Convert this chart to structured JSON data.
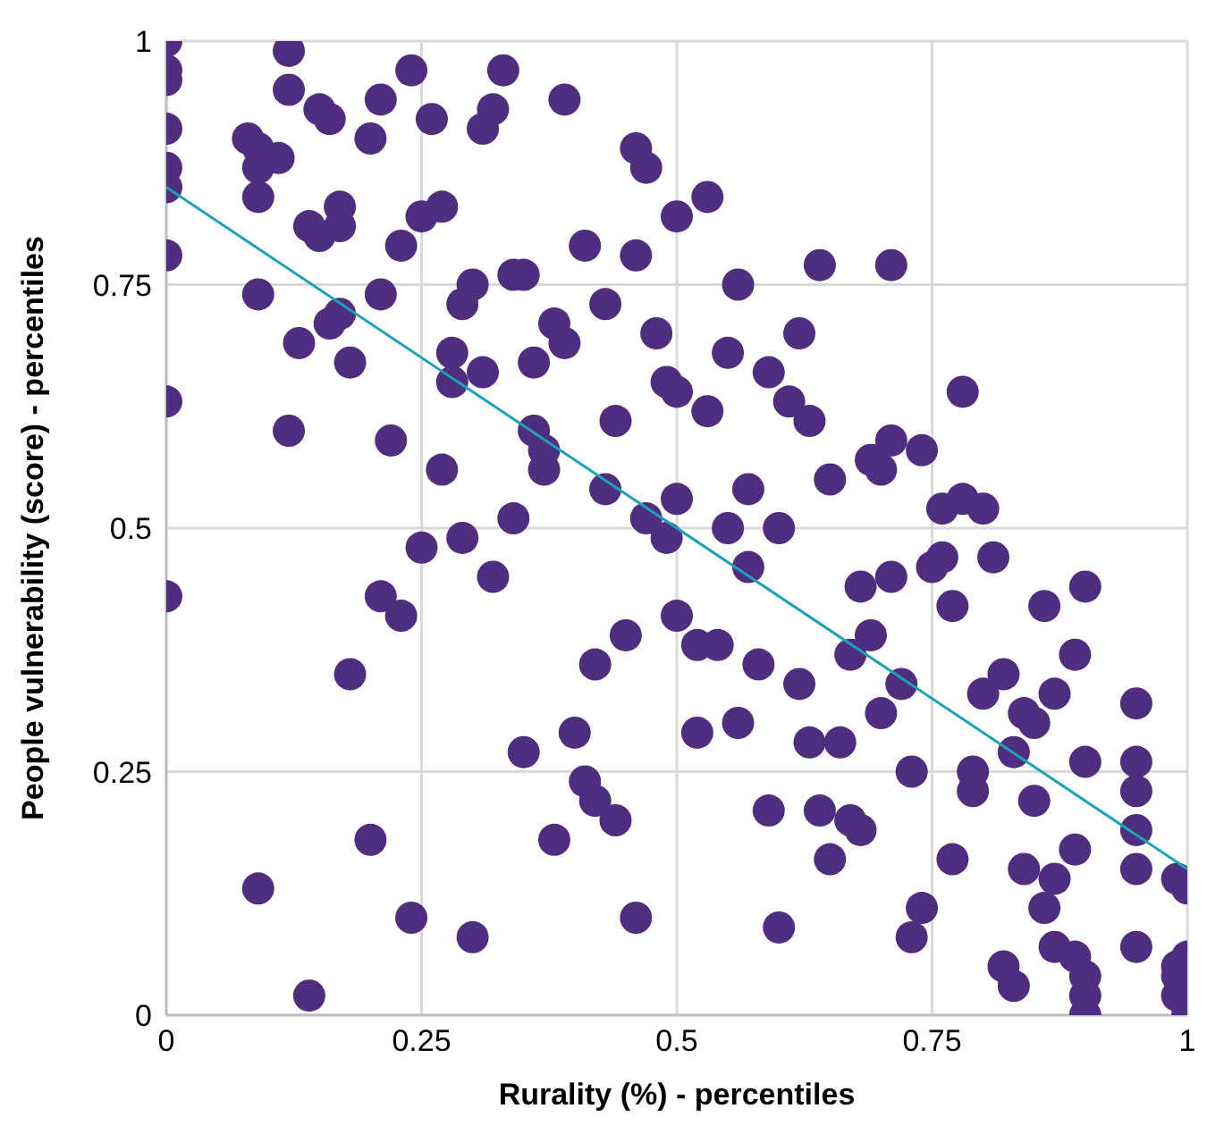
{
  "chart_data": {
    "type": "scatter",
    "xlabel": "Rurality (%) - percentiles",
    "ylabel": "People vulnerability (score) - percentiles",
    "xlim": [
      0,
      1
    ],
    "ylim": [
      0,
      1
    ],
    "xticks": [
      0,
      0.25,
      0.5,
      0.75,
      1
    ],
    "yticks": [
      0,
      0.25,
      0.5,
      0.75,
      1
    ],
    "grid": true,
    "legend": false,
    "marker": "circle",
    "series": [
      {
        "color": "#4f2d7f",
        "x": [
          0,
          0,
          0,
          0,
          0,
          0,
          0,
          0,
          0,
          0.12,
          0.12,
          0.15,
          0.16,
          0.24,
          0.21,
          0.2,
          0.26,
          0.33,
          0.32,
          0.31,
          0.39,
          0.08,
          0.09,
          0.09,
          0.11,
          0.09,
          0.17,
          0.14,
          0.15,
          0.17,
          0.25,
          0.27,
          0.23,
          0.41,
          0.46,
          0.46,
          0.47,
          0.5,
          0.09,
          0.21,
          0.3,
          0.29,
          0.34,
          0.35,
          0.17,
          0.16,
          0.13,
          0.18,
          0.28,
          0.28,
          0.31,
          0.36,
          0.38,
          0.39,
          0.43,
          0.48,
          0.49,
          0.5,
          0.12,
          0.22,
          0.27,
          0.36,
          0.37,
          0.37,
          0.44,
          0.43,
          0.5,
          0.34,
          0.47,
          0.49,
          0.25,
          0.29,
          0.53,
          0.64,
          0.71,
          0.56,
          0.62,
          0.55,
          0.59,
          0.53,
          0.61,
          0.63,
          0.71,
          0.74,
          0.69,
          0.7,
          0.78,
          0.65,
          0.57,
          0.55,
          0.6,
          0.76,
          0.78,
          0.8,
          0.32,
          0.21,
          0.23,
          0.18,
          0.5,
          0.45,
          0.42,
          0.4,
          0.35,
          0.41,
          0.42,
          0.44,
          0.38,
          0.2,
          0.09,
          0.24,
          0.3,
          0.46,
          0.14,
          0.57,
          0.75,
          0.76,
          0.81,
          0.68,
          0.71,
          0.77,
          0.86,
          0.9,
          0.52,
          0.54,
          0.58,
          0.62,
          0.67,
          0.69,
          0.72,
          0.7,
          0.52,
          0.56,
          0.63,
          0.66,
          0.82,
          0.8,
          0.84,
          0.85,
          0.87,
          0.89,
          0.83,
          0.95,
          0.9,
          0.95,
          0.95,
          0.73,
          0.79,
          0.79,
          0.85,
          0.95,
          0.95,
          0.59,
          0.64,
          0.67,
          0.68,
          0.65,
          0.77,
          0.84,
          0.89,
          0.87,
          0.86,
          0.99,
          1,
          0.6,
          0.74,
          0.73,
          0.87,
          0.89,
          0.9,
          0.95,
          0.82,
          0.83,
          0.9,
          0.9,
          0.99,
          0.99,
          0.99,
          1,
          1
        ],
        "values": [
          1,
          0.97,
          0.96,
          0.91,
          0.87,
          0.85,
          0.78,
          0.63,
          0.43,
          0.99,
          0.95,
          0.93,
          0.92,
          0.97,
          0.94,
          0.9,
          0.92,
          0.97,
          0.93,
          0.91,
          0.94,
          0.9,
          0.89,
          0.87,
          0.88,
          0.84,
          0.83,
          0.81,
          0.8,
          0.81,
          0.82,
          0.83,
          0.79,
          0.79,
          0.78,
          0.89,
          0.87,
          0.82,
          0.74,
          0.74,
          0.75,
          0.73,
          0.76,
          0.76,
          0.72,
          0.71,
          0.69,
          0.67,
          0.68,
          0.65,
          0.66,
          0.67,
          0.71,
          0.69,
          0.73,
          0.7,
          0.65,
          0.64,
          0.6,
          0.59,
          0.56,
          0.6,
          0.58,
          0.56,
          0.61,
          0.54,
          0.53,
          0.51,
          0.51,
          0.49,
          0.48,
          0.49,
          0.84,
          0.77,
          0.77,
          0.75,
          0.7,
          0.68,
          0.66,
          0.62,
          0.63,
          0.61,
          0.59,
          0.58,
          0.57,
          0.56,
          0.64,
          0.55,
          0.54,
          0.5,
          0.5,
          0.52,
          0.53,
          0.52,
          0.45,
          0.43,
          0.41,
          0.35,
          0.41,
          0.39,
          0.36,
          0.29,
          0.27,
          0.24,
          0.22,
          0.2,
          0.18,
          0.18,
          0.13,
          0.1,
          0.08,
          0.1,
          0.02,
          0.46,
          0.46,
          0.47,
          0.47,
          0.44,
          0.45,
          0.42,
          0.42,
          0.44,
          0.38,
          0.38,
          0.36,
          0.34,
          0.37,
          0.39,
          0.34,
          0.31,
          0.29,
          0.3,
          0.28,
          0.28,
          0.35,
          0.33,
          0.31,
          0.3,
          0.33,
          0.37,
          0.27,
          0.32,
          0.26,
          0.26,
          0.23,
          0.25,
          0.25,
          0.23,
          0.22,
          0.19,
          0.15,
          0.21,
          0.21,
          0.2,
          0.19,
          0.16,
          0.16,
          0.15,
          0.17,
          0.14,
          0.11,
          0.14,
          0.13,
          0.09,
          0.11,
          0.08,
          0.07,
          0.06,
          0.04,
          0.07,
          0.05,
          0.03,
          0.02,
          0,
          0.05,
          0.04,
          0.02,
          0.06,
          0
        ]
      },
      {
        "type": "line",
        "color": "#1ba3b5",
        "marker": "none",
        "x": [
          0,
          1
        ],
        "values": [
          0.85,
          0.15
        ]
      }
    ]
  }
}
